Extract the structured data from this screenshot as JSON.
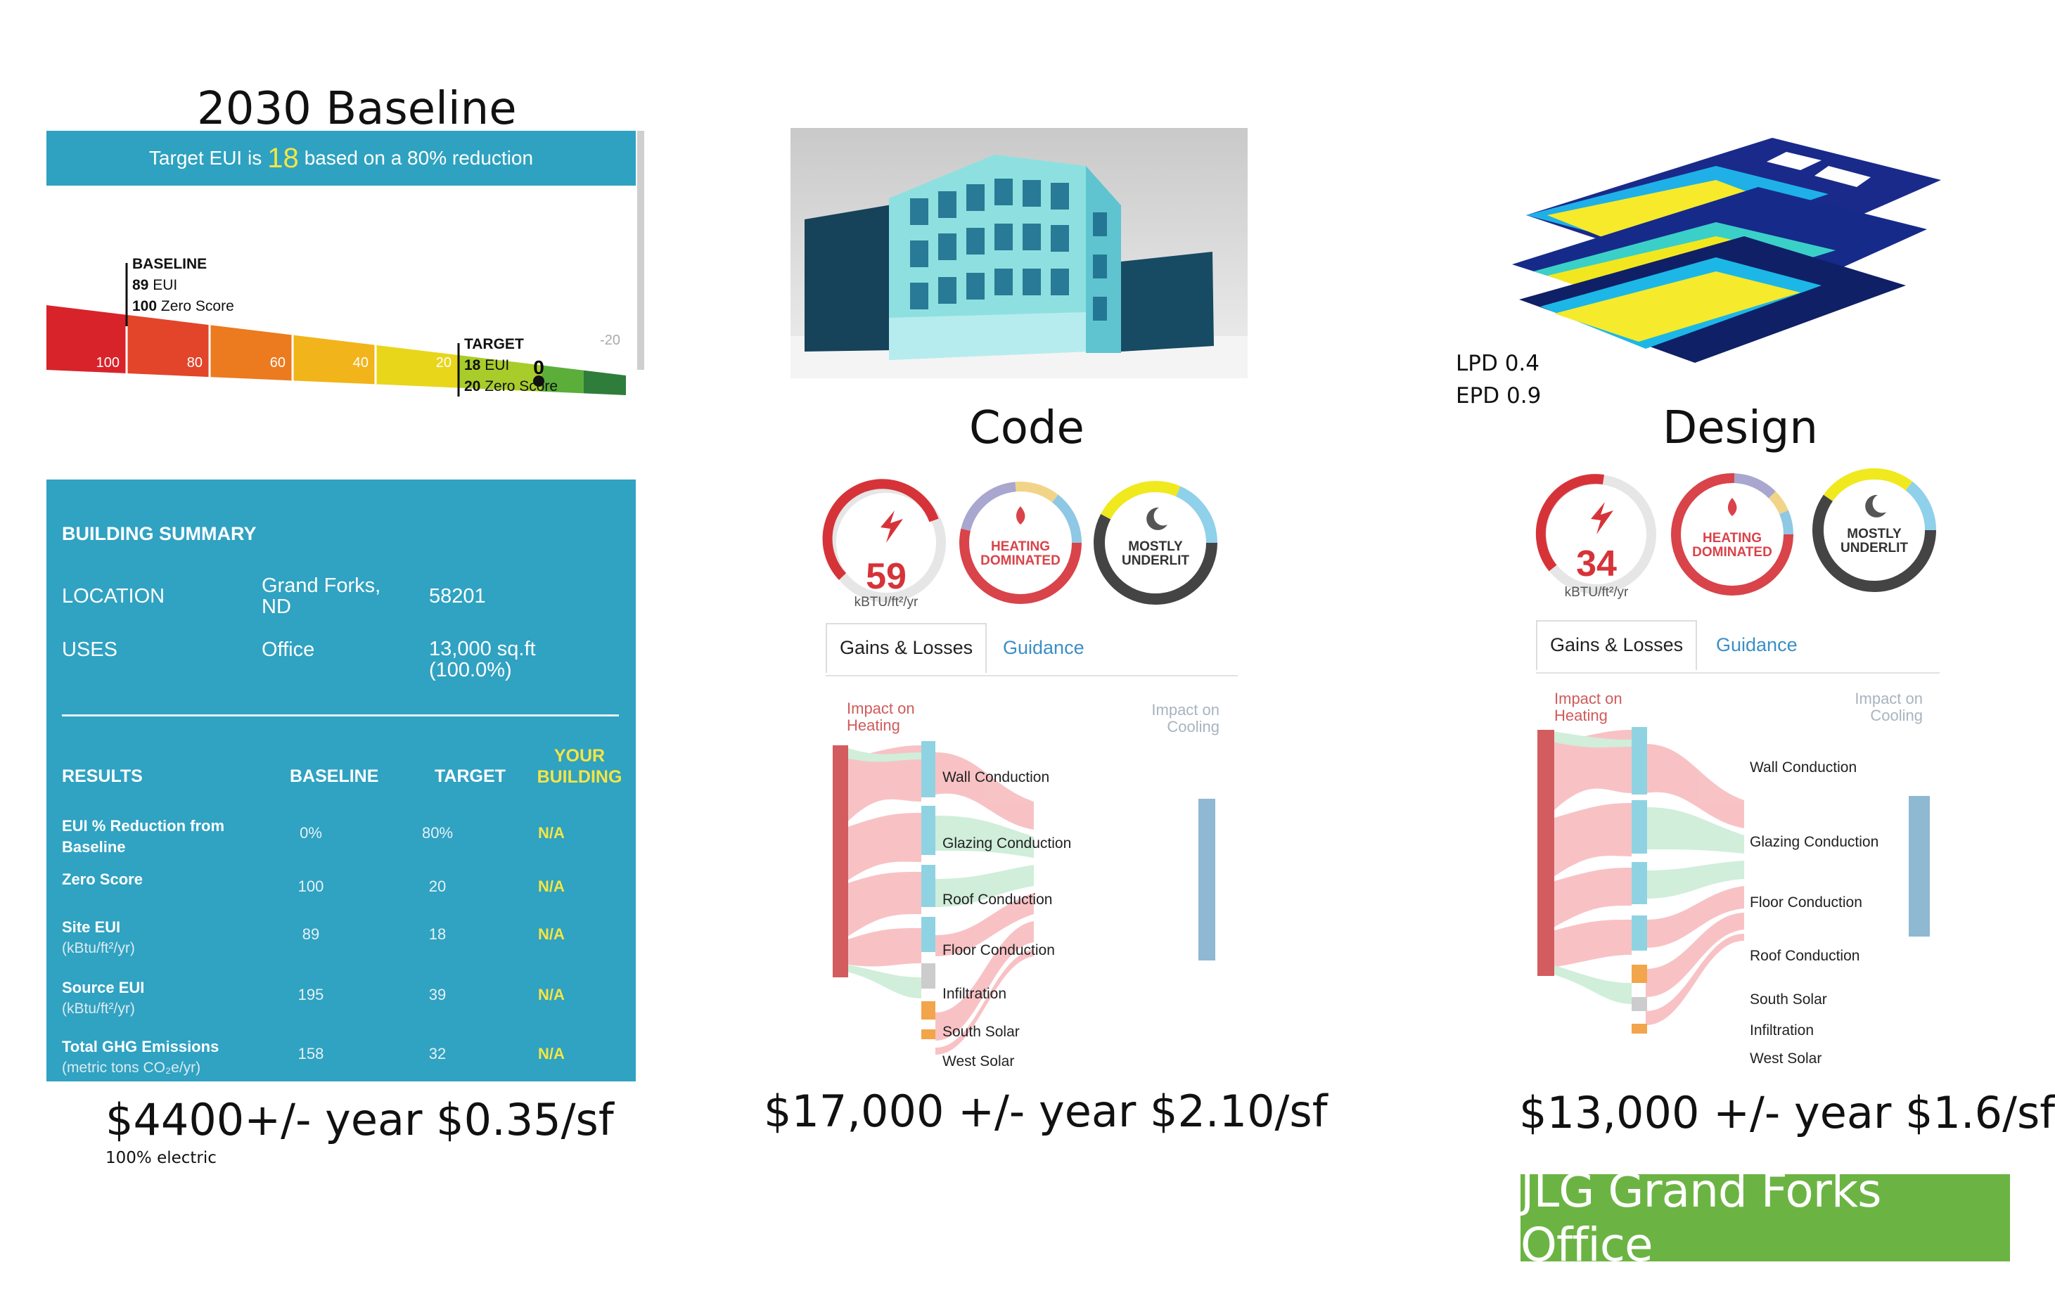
{
  "baseline": {
    "heading": "2030 Baseline",
    "target_bar": {
      "prefix": "Target EUI is",
      "value": "18",
      "suffix": "based on a 80% reduction"
    },
    "scale": {
      "baseline_marker": {
        "title": "BASELINE",
        "eui_num": "89",
        "eui_unit": "EUI",
        "score_num": "100",
        "score_unit": "Zero Score"
      },
      "target_marker": {
        "title": "TARGET",
        "eui_num": "18",
        "eui_unit": "EUI",
        "score_num": "20",
        "score_unit": "Zero Score"
      },
      "pointer_value": "0",
      "ticks": [
        "100",
        "80",
        "60",
        "40",
        "20",
        "-20"
      ],
      "colors": [
        "#d8232a",
        "#e2452a",
        "#ec7a1f",
        "#f1b41a",
        "#e8d61b",
        "#a8cc2a",
        "#5bae3a",
        "#2f7d3a"
      ]
    },
    "summary": {
      "title": "BUILDING SUMMARY",
      "location_label": "LOCATION",
      "location_city": "Grand Forks,",
      "location_state": "ND",
      "location_zip": "58201",
      "uses_label": "USES",
      "uses_value": "Office",
      "area_value": "13,000 sq.ft",
      "area_pct": "(100.0%)"
    },
    "results": {
      "headers": {
        "results": "RESULTS",
        "baseline": "BASELINE",
        "target": "TARGET",
        "your": "YOUR",
        "building": "BUILDING"
      },
      "rows": [
        {
          "label": "EUI % Reduction from",
          "label2": "Baseline",
          "sub": "",
          "baseline": "0%",
          "target": "80%",
          "yours": "N/A"
        },
        {
          "label": "Zero Score",
          "label2": "",
          "sub": "",
          "baseline": "100",
          "target": "20",
          "yours": "N/A"
        },
        {
          "label": "Site EUI",
          "label2": "",
          "sub": "(kBtu/ft²/yr)",
          "baseline": "89",
          "target": "18",
          "yours": "N/A"
        },
        {
          "label": "Source EUI",
          "label2": "",
          "sub": "(kBtu/ft²/yr)",
          "baseline": "195",
          "target": "39",
          "yours": "N/A"
        },
        {
          "label": "Total GHG Emissions",
          "label2": "",
          "sub": "(metric tons CO₂e/yr)",
          "baseline": "158",
          "target": "32",
          "yours": "N/A"
        }
      ]
    },
    "cost": "$4400+/- year $0.35/sf",
    "note": "100% electric"
  },
  "code": {
    "heading": "Code",
    "gauge_value": "59",
    "gauge_unit": "kBTU/ft²/yr",
    "ring_heating": [
      "HEATING",
      "DOMINATED"
    ],
    "ring_underlit": [
      "MOSTLY",
      "UNDERLIT"
    ],
    "tabs": [
      "Gains & Losses",
      "Guidance"
    ],
    "impact_heating": [
      "Impact on",
      "Heating"
    ],
    "impact_cooling": [
      "Impact on",
      "Cooling"
    ],
    "flows": [
      "Wall Conduction",
      "Glazing Conduction",
      "Roof Conduction",
      "Floor Conduction",
      "Infiltration",
      "South Solar",
      "West Solar"
    ],
    "cost": "$17,000 +/- year $2.10/sf"
  },
  "design": {
    "heading": "Design",
    "lpd": "LPD 0.4",
    "epd": "EPD 0.9",
    "gauge_value": "34",
    "gauge_unit": "kBTU/ft²/yr",
    "ring_heating": [
      "HEATING",
      "DOMINATED"
    ],
    "ring_underlit": [
      "MOSTLY",
      "UNDERLIT"
    ],
    "tabs": [
      "Gains & Losses",
      "Guidance"
    ],
    "impact_heating": [
      "Impact on",
      "Heating"
    ],
    "impact_cooling": [
      "Impact on",
      "Cooling"
    ],
    "flows": [
      "Wall Conduction",
      "Glazing Conduction",
      "Floor Conduction",
      "Roof Conduction",
      "South Solar",
      "Infiltration",
      "West Solar"
    ],
    "cost": "$13,000 +/- year $1.6/sf"
  },
  "project_badge": "JLG Grand Forks Office",
  "colors": {
    "teal": "#2ea2c0",
    "yellow": "#f5e542",
    "green_badge": "#6bb443",
    "heating_red": "#d63339",
    "flow_pink": "#f7b8bb",
    "flow_green": "#c8ecd4",
    "cooling_blue": "#8fb8d2"
  }
}
